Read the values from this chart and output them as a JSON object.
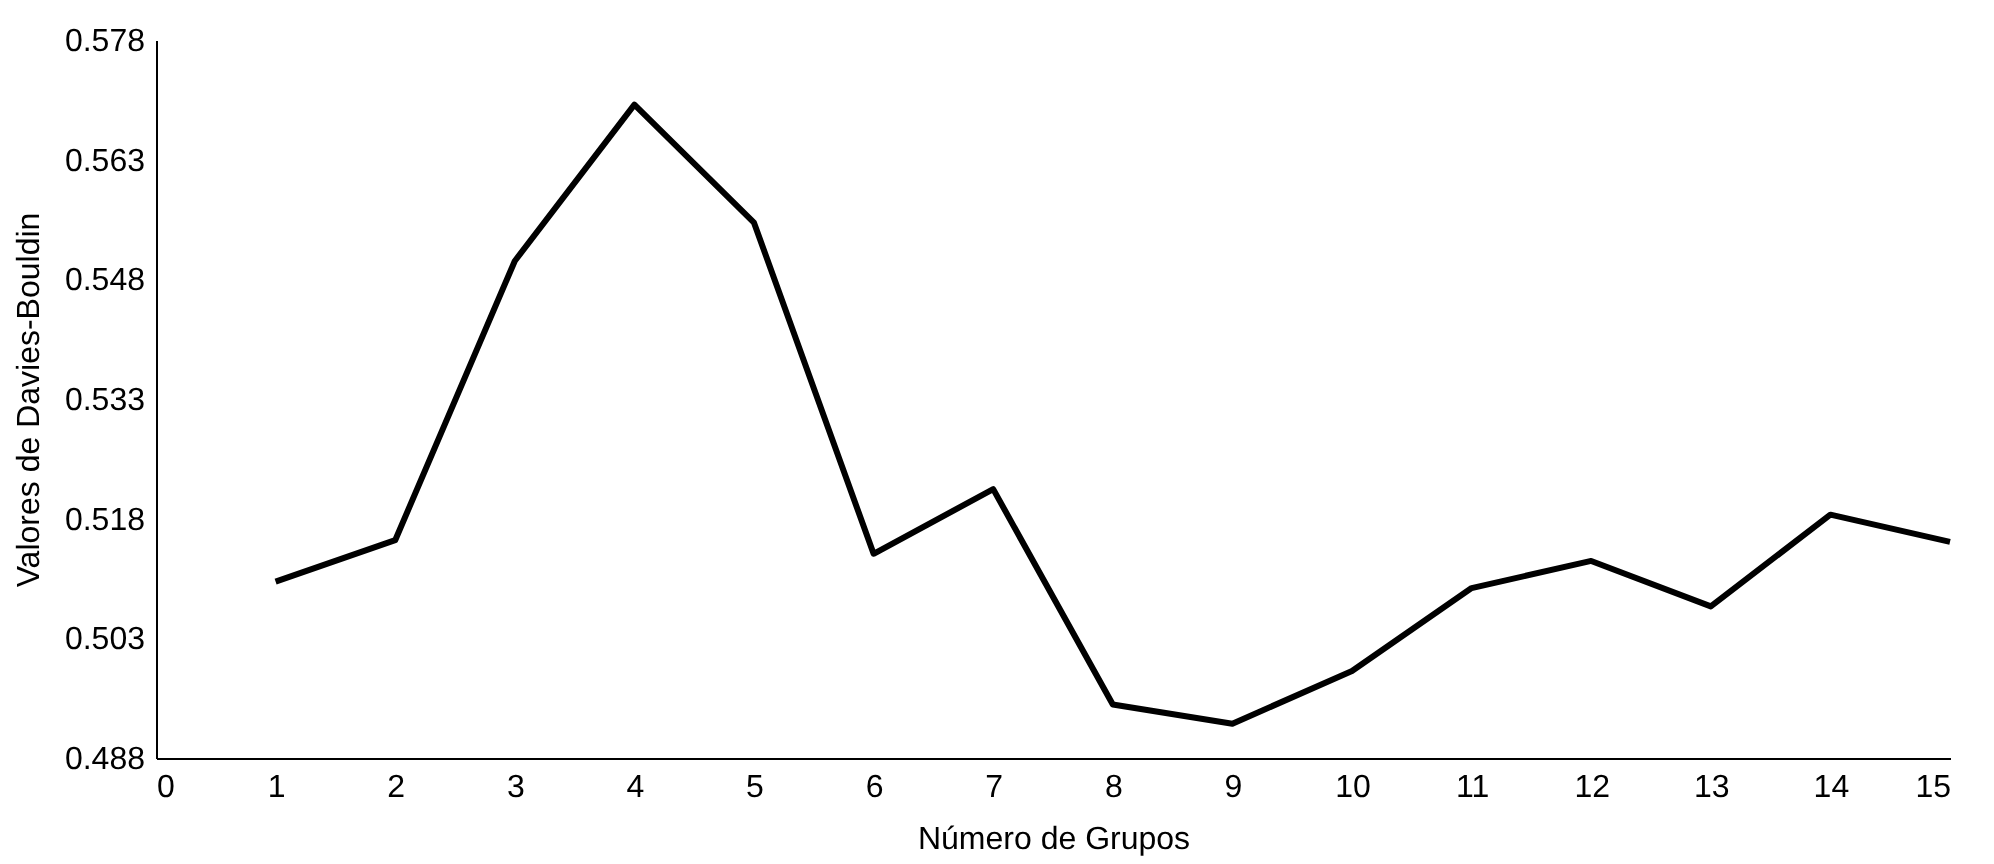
{
  "chart_data": {
    "type": "line",
    "xlabel": "Número de Grupos",
    "ylabel": "Valores de Davies-Bouldin",
    "x": [
      1,
      2,
      3,
      4,
      5,
      6,
      7,
      8,
      9,
      10,
      11,
      12,
      13,
      14,
      15
    ],
    "series": [
      {
        "color": "#000000",
        "values": [
          0.5101,
          0.5153,
          0.5503,
          0.5699,
          0.5551,
          0.5136,
          0.5217,
          0.4947,
          0.4923,
          0.4989,
          0.5093,
          0.5127,
          0.507,
          0.5185,
          0.5151
        ]
      }
    ],
    "xlim": [
      0,
      15
    ],
    "xticks": [
      0,
      1,
      2,
      3,
      4,
      5,
      6,
      7,
      8,
      9,
      10,
      11,
      12,
      13,
      14,
      15
    ],
    "ylim": [
      0.488,
      0.578
    ],
    "yticks": [
      0.488,
      0.503,
      0.518,
      0.533,
      0.548,
      0.563,
      0.578
    ],
    "grid": false,
    "marker": "none",
    "line_style": "solid"
  }
}
